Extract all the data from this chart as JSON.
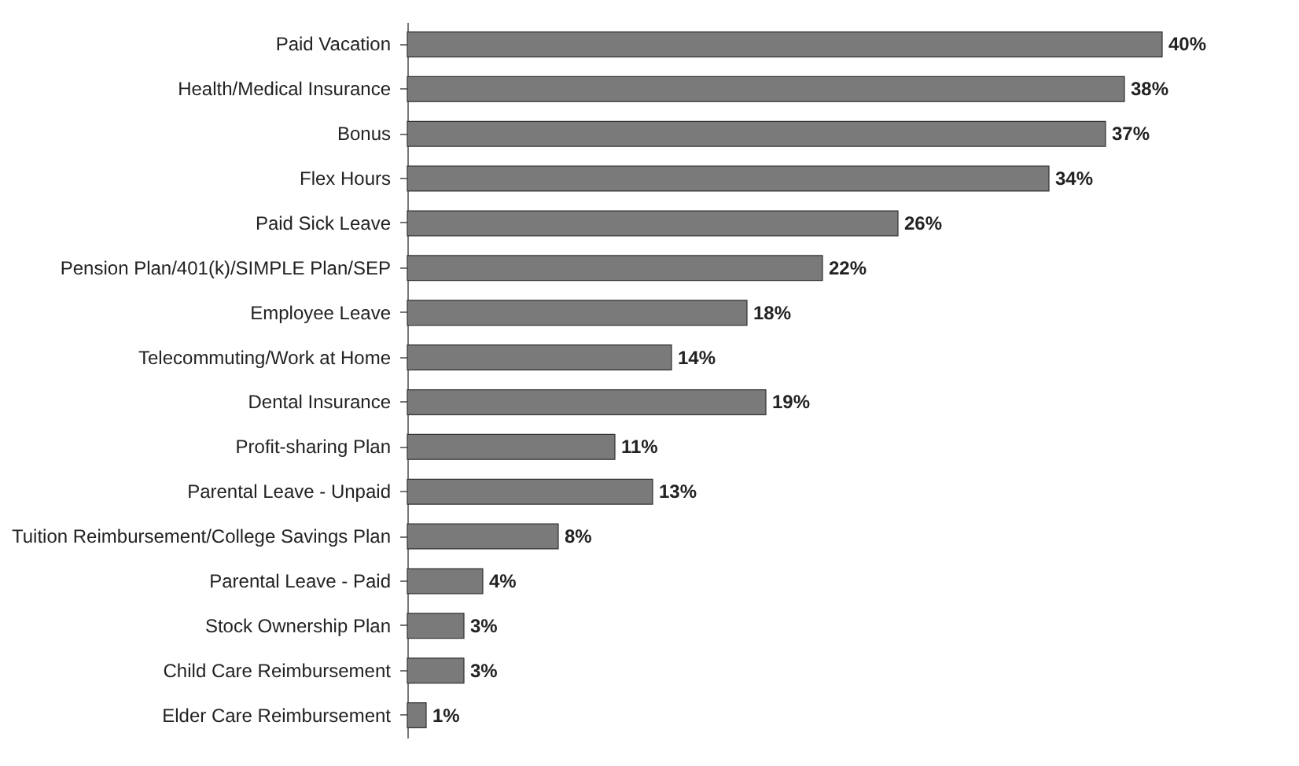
{
  "chart_data": {
    "type": "bar",
    "orientation": "horizontal",
    "categories": [
      "Paid Vacation",
      "Health/Medical Insurance",
      "Bonus",
      "Flex Hours",
      "Paid Sick Leave",
      "Pension Plan/401(k)/SIMPLE Plan/SEP",
      "Employee Leave",
      "Telecommuting/Work at Home",
      "Dental Insurance",
      "Profit-sharing Plan",
      "Parental Leave - Unpaid",
      "Tuition Reimbursement/College Savings Plan",
      "Parental Leave - Paid",
      "Stock Ownership Plan",
      "Child Care Reimbursement",
      "Elder Care Reimbursement"
    ],
    "values": [
      40,
      38,
      37,
      34,
      26,
      22,
      18,
      14,
      19,
      11,
      13,
      8,
      4,
      3,
      3,
      1
    ],
    "value_labels": [
      "40%",
      "38%",
      "37%",
      "34%",
      "26%",
      "22%",
      "18%",
      "14%",
      "19%",
      "11%",
      "13%",
      "8%",
      "4%",
      "3%",
      "3%",
      "1%"
    ],
    "color": "#7a7a7a"
  }
}
